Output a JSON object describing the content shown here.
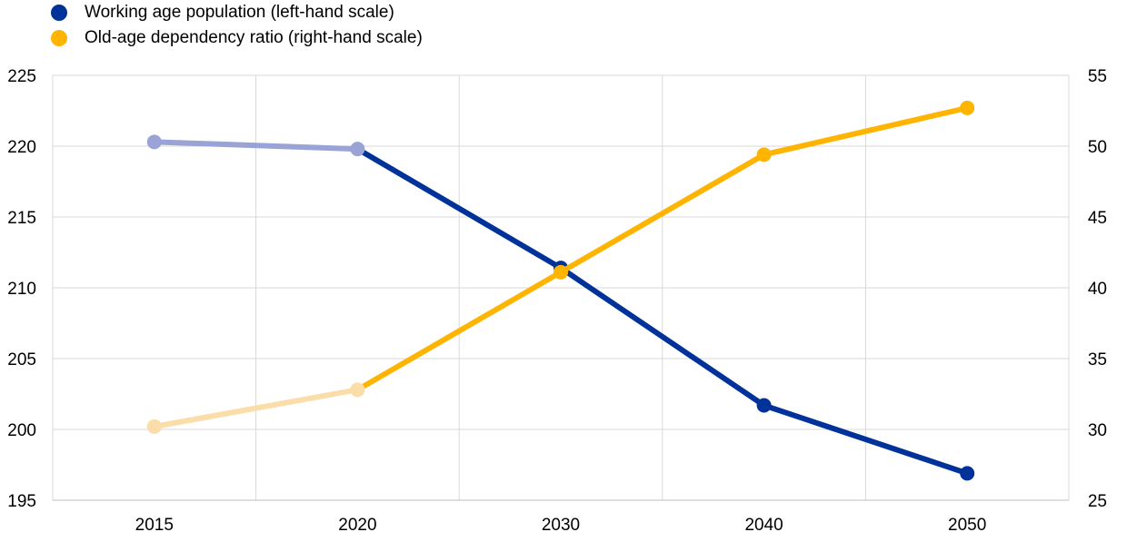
{
  "chart_data": {
    "type": "line",
    "title": "",
    "categories": [
      "2015",
      "2020",
      "2030",
      "2040",
      "2050"
    ],
    "series": [
      {
        "name": "Working age population (left-hand scale)",
        "axis": "left",
        "color": "#003299",
        "faded_color": "#99A3D6",
        "faded_through_index": 1,
        "values": [
          220.3,
          219.8,
          211.4,
          201.7,
          196.9
        ]
      },
      {
        "name": "Old-age dependency ratio (right-hand scale)",
        "axis": "right",
        "color": "#FFB400",
        "faded_color": "#FADDA8",
        "faded_through_index": 1,
        "values": [
          30.2,
          32.8,
          41.1,
          49.4,
          52.7
        ]
      }
    ],
    "y_left": {
      "label": "",
      "range": [
        195,
        225
      ],
      "ticks": [
        "195",
        "200",
        "205",
        "210",
        "215",
        "220",
        "225"
      ]
    },
    "y_right": {
      "label": "",
      "range": [
        25,
        55
      ],
      "ticks": [
        "25",
        "30",
        "35",
        "40",
        "45",
        "50",
        "55"
      ]
    },
    "grid": true,
    "legend": "top-left"
  }
}
